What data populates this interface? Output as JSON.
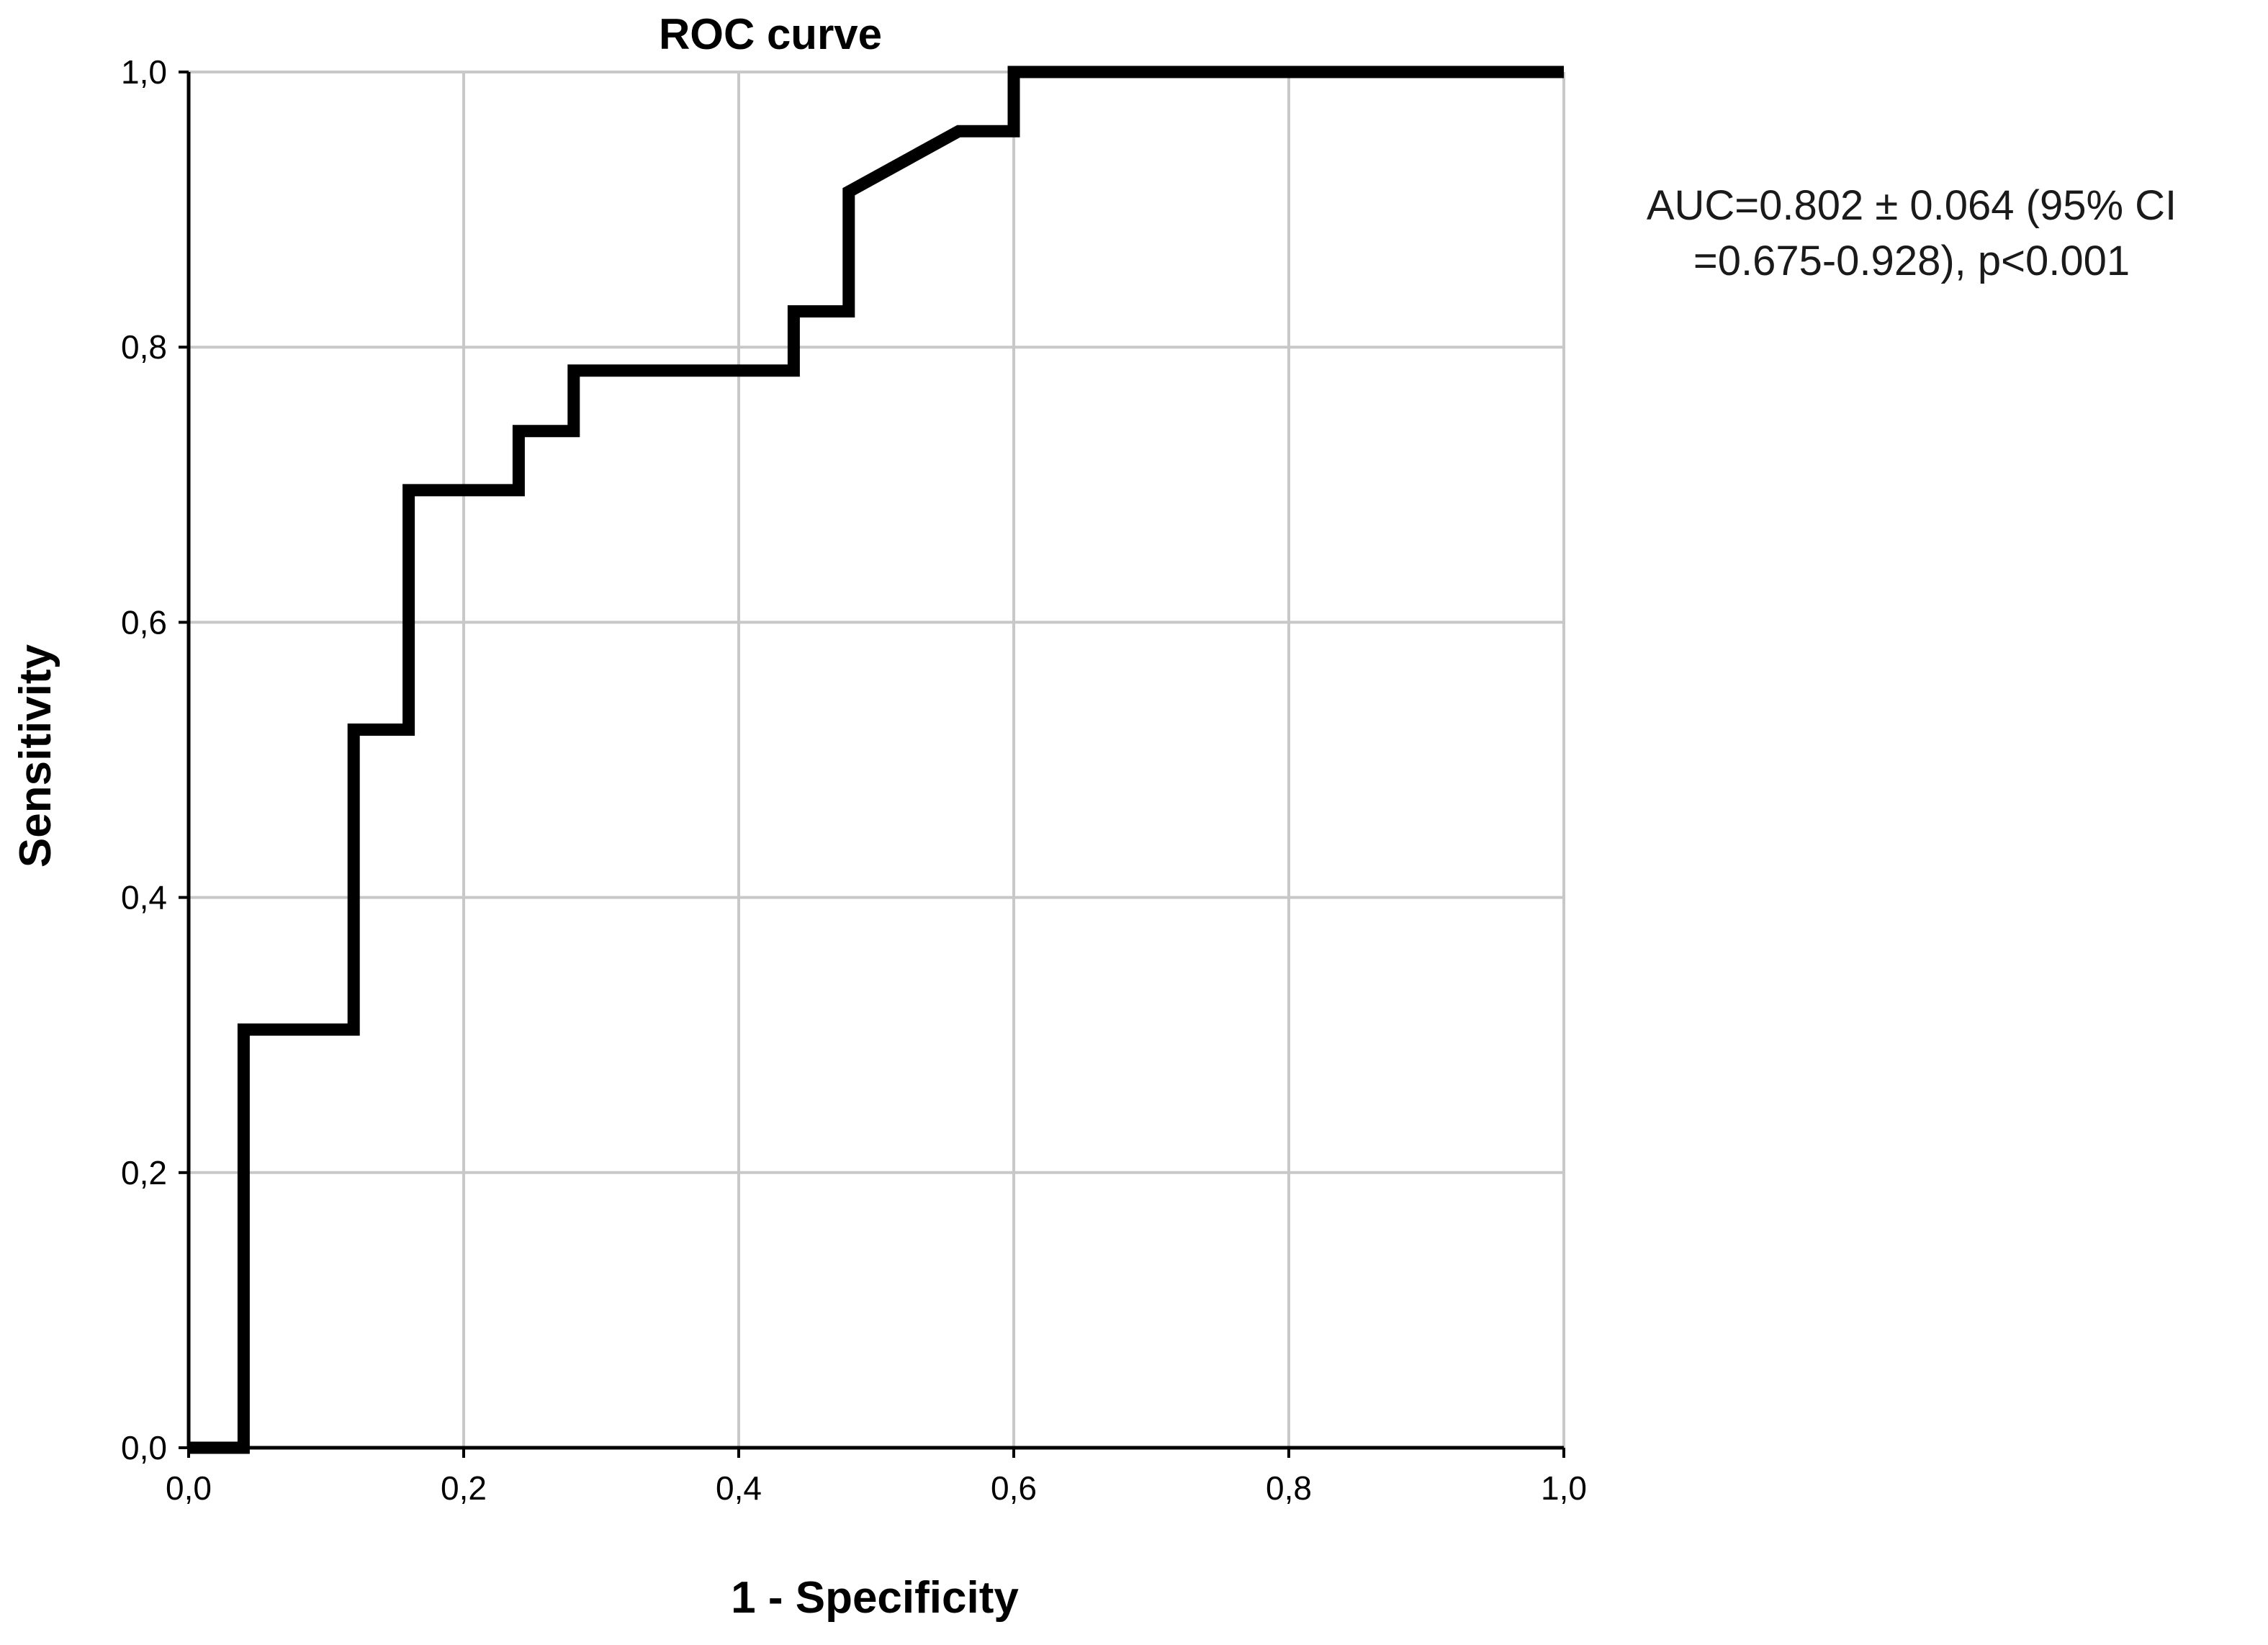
{
  "chart_data": {
    "type": "line",
    "title": "ROC curve",
    "xlabel": "1 - Specificity",
    "ylabel": "Sensitivity",
    "xlim": [
      0,
      1
    ],
    "ylim": [
      0,
      1
    ],
    "grid": true,
    "x_ticks": [
      0,
      0.2,
      0.4,
      0.6,
      0.8,
      1.0
    ],
    "x_tick_labels": [
      "0,0",
      "0,2",
      "0,4",
      "0,6",
      "0,8",
      "1,0"
    ],
    "y_ticks": [
      0,
      0.2,
      0.4,
      0.6,
      0.8,
      1.0
    ],
    "y_tick_labels": [
      "0,0",
      "0,2",
      "0,4",
      "0,6",
      "0,8",
      "1,0"
    ],
    "series": [
      {
        "color": "#000000",
        "step": true,
        "points": [
          [
            0.0,
            0.0
          ],
          [
            0.04,
            0.0
          ],
          [
            0.04,
            0.304
          ],
          [
            0.12,
            0.304
          ],
          [
            0.12,
            0.522
          ],
          [
            0.16,
            0.522
          ],
          [
            0.16,
            0.696
          ],
          [
            0.24,
            0.696
          ],
          [
            0.24,
            0.739
          ],
          [
            0.28,
            0.739
          ],
          [
            0.28,
            0.783
          ],
          [
            0.44,
            0.783
          ],
          [
            0.44,
            0.826
          ],
          [
            0.48,
            0.826
          ],
          [
            0.48,
            0.913
          ],
          [
            0.56,
            0.957
          ],
          [
            0.6,
            0.957
          ],
          [
            0.6,
            1.0
          ],
          [
            1.0,
            1.0
          ]
        ]
      }
    ],
    "annotations": [
      "AUC=0.802 ± 0.064 (95% CI",
      "=0.675-0.928), p<0.001"
    ]
  }
}
